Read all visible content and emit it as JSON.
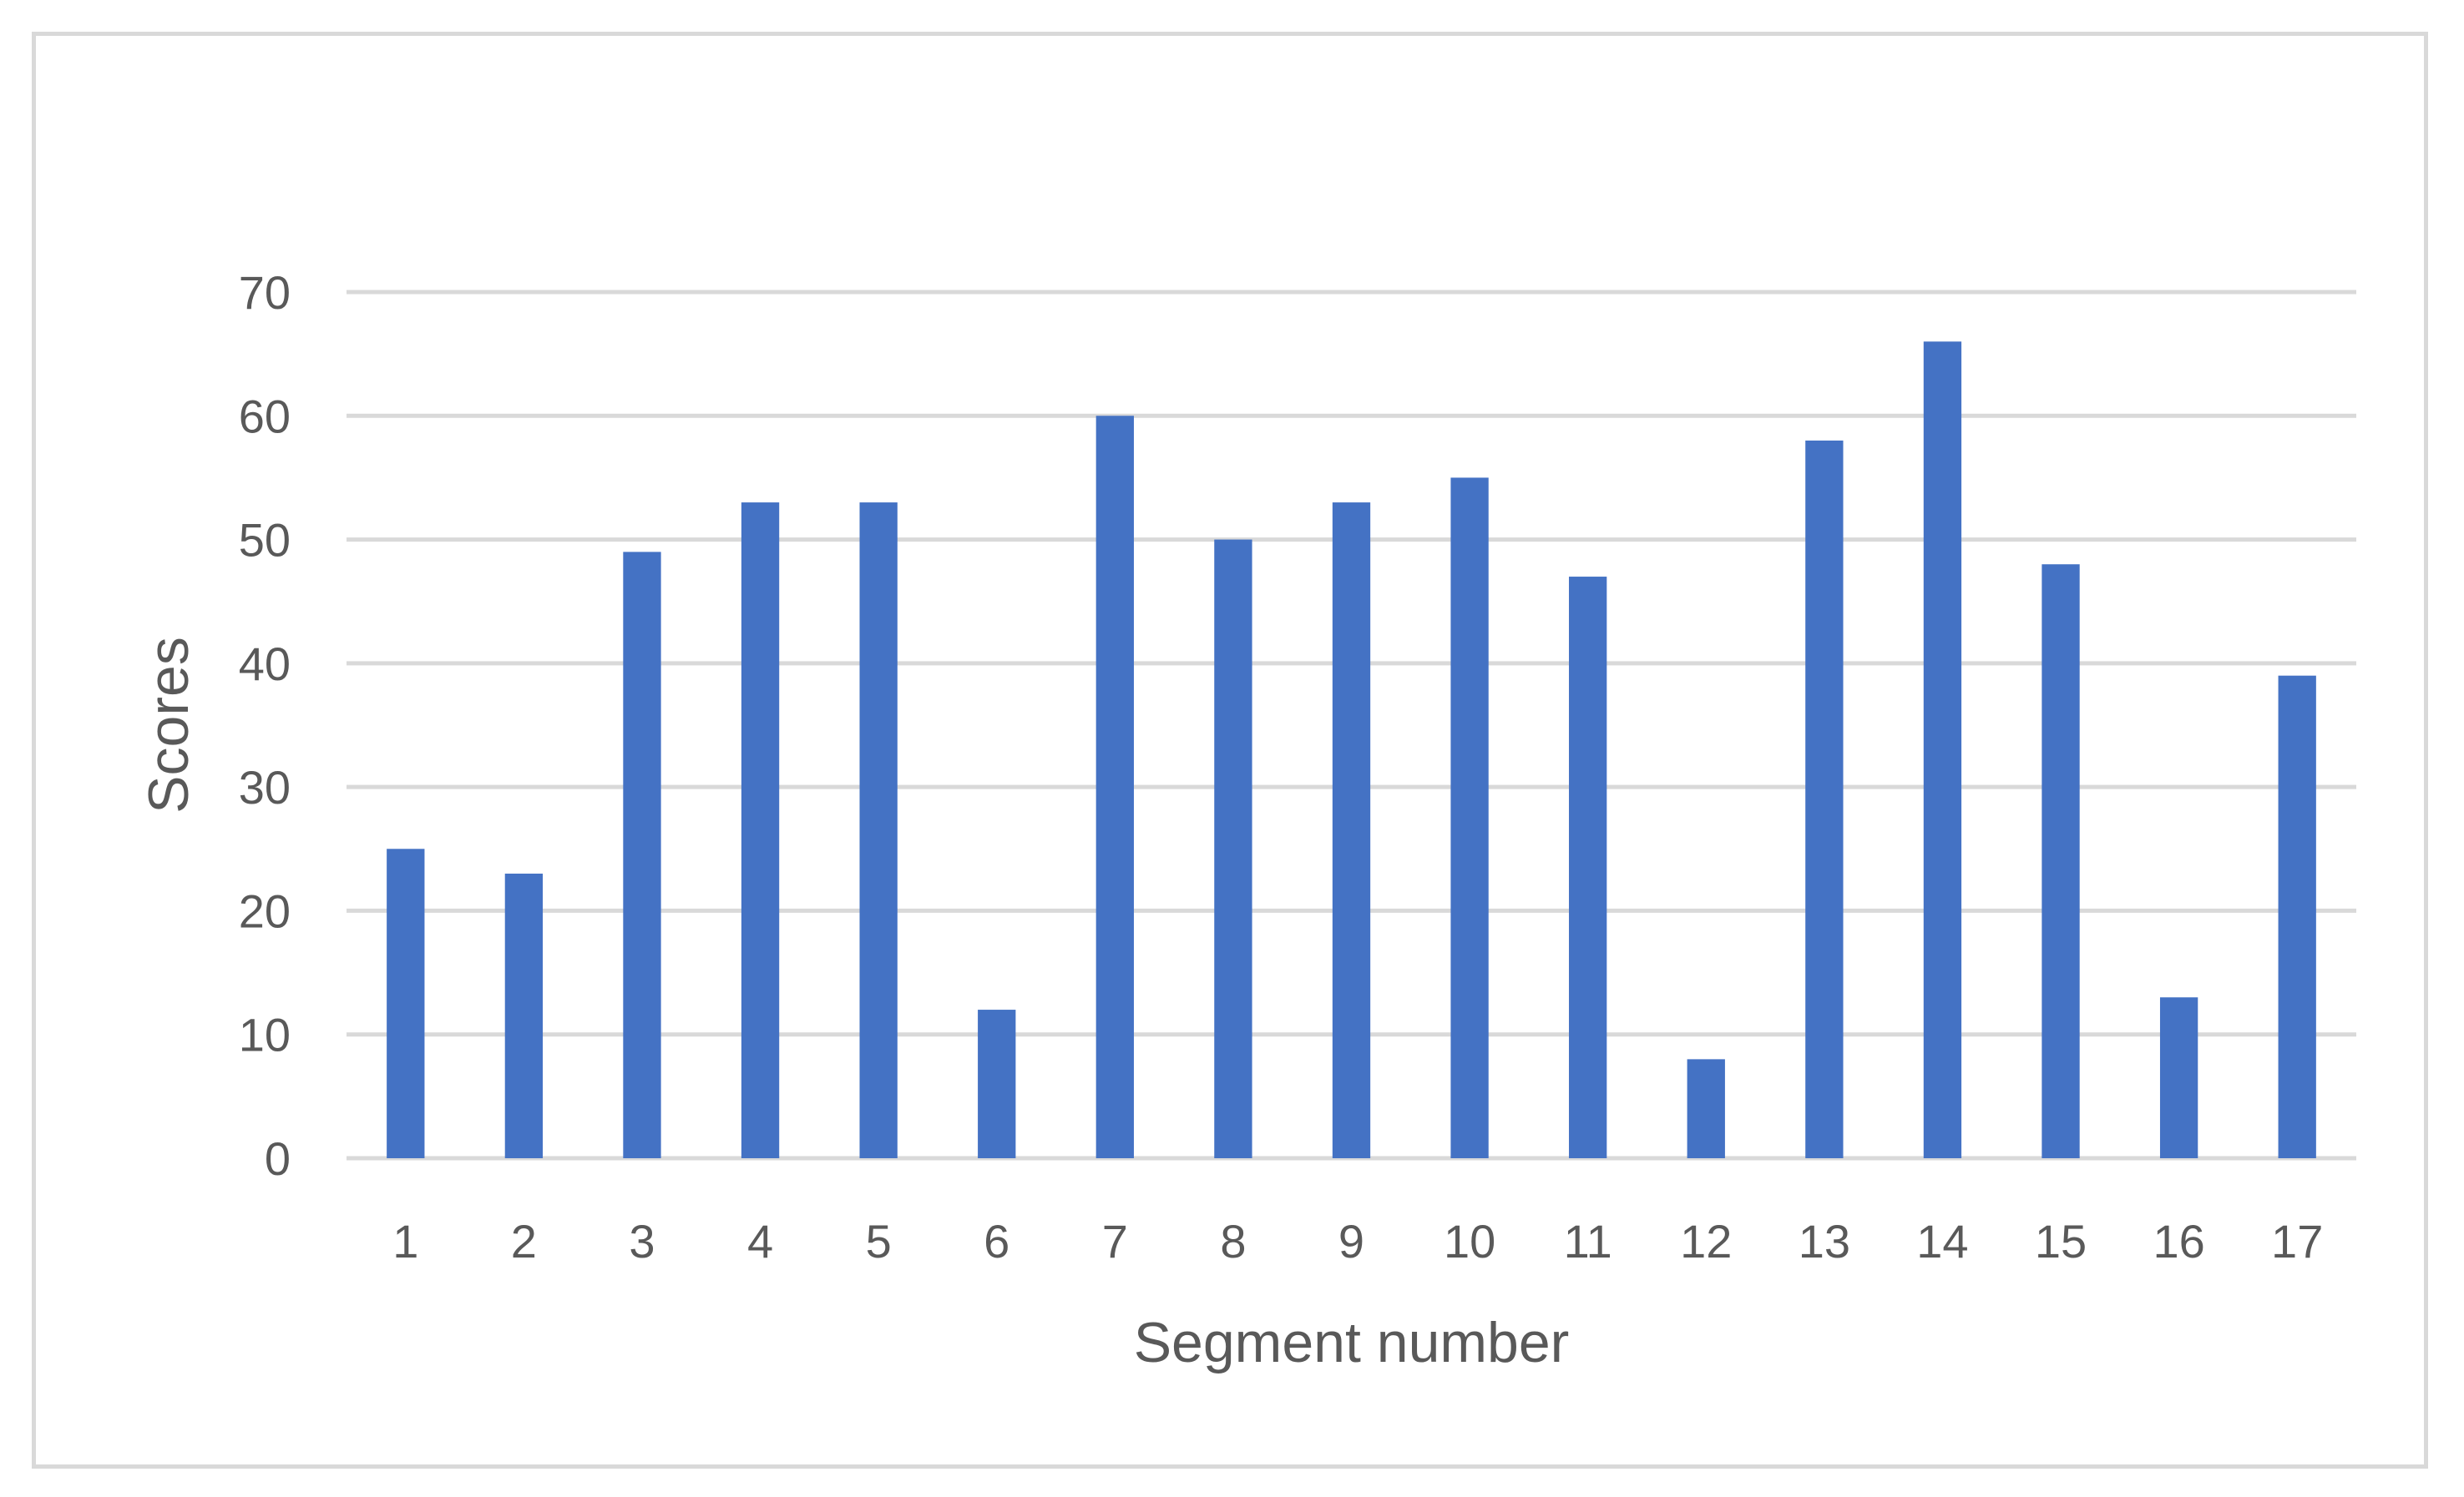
{
  "chart_data": {
    "type": "bar",
    "title": "",
    "xlabel": "Segment number",
    "ylabel": "Scores",
    "categories": [
      "1",
      "2",
      "3",
      "4",
      "5",
      "6",
      "7",
      "8",
      "9",
      "10",
      "11",
      "12",
      "13",
      "14",
      "15",
      "16",
      "17"
    ],
    "values": [
      25,
      23,
      49,
      53,
      53,
      12,
      60,
      50,
      53,
      55,
      47,
      8,
      58,
      66,
      48,
      13,
      39
    ],
    "ylim": [
      0,
      70
    ],
    "yticks": [
      "0",
      "10",
      "20",
      "30",
      "40",
      "50",
      "60",
      "70"
    ],
    "grid": true,
    "legend": "none",
    "colors": {
      "bar": "#4472c4",
      "grid": "#d9d9d9",
      "text": "#595959",
      "border": "#d9d9d9"
    }
  }
}
